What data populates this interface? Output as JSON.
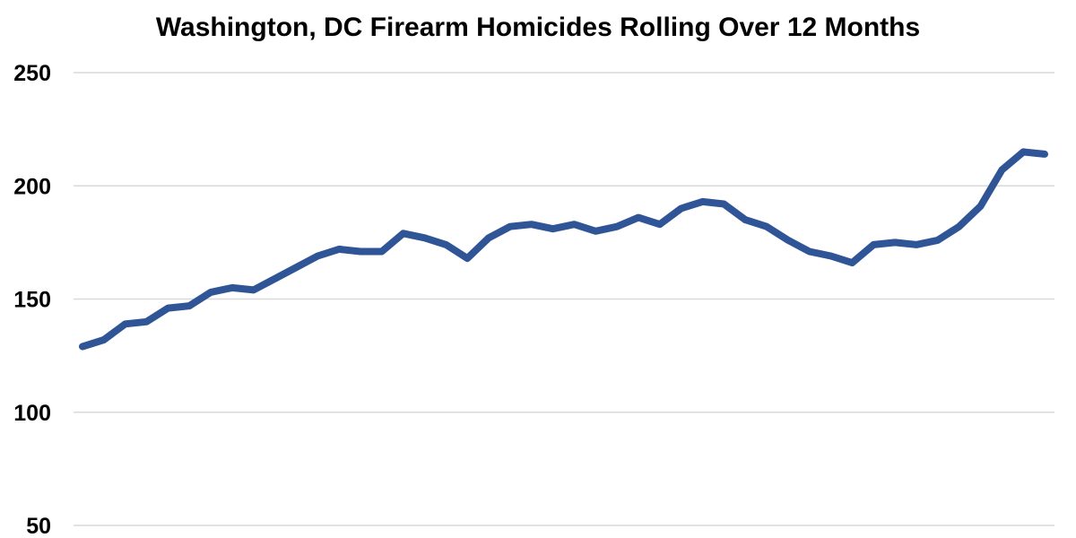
{
  "chart_data": {
    "type": "line",
    "title": "Washington, DC Firearm Homicides Rolling Over 12 Months",
    "xlabel": "",
    "ylabel": "",
    "ylim": [
      50,
      250
    ],
    "yticks": [
      50,
      100,
      150,
      200,
      250
    ],
    "grid": true,
    "colors": {
      "line": "#2F5597",
      "grid": "#d9d9d9"
    },
    "series": [
      {
        "values": [
          129,
          132,
          139,
          140,
          146,
          147,
          153,
          155,
          154,
          159,
          164,
          169,
          172,
          171,
          171,
          179,
          177,
          174,
          168,
          177,
          182,
          183,
          181,
          183,
          180,
          182,
          186,
          183,
          190,
          193,
          192,
          185,
          182,
          176,
          171,
          169,
          166,
          174,
          175,
          174,
          176,
          182,
          191,
          207,
          215,
          214
        ]
      }
    ]
  }
}
